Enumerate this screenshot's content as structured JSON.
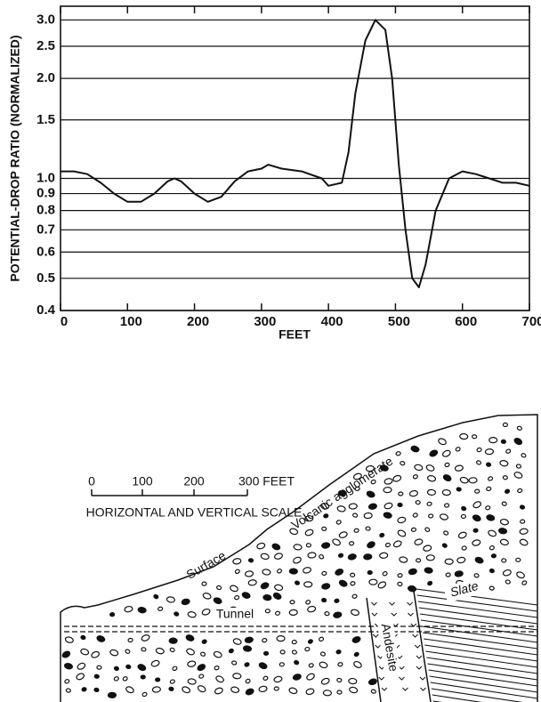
{
  "chart_data": {
    "type": "line",
    "x_label": "FEET",
    "y_label": "POTENTIAL-DROP RATIO (NORMALIZED)",
    "log_y": true,
    "grid": true,
    "xlim": [
      0,
      700
    ],
    "ylim": [
      0.4,
      3.3
    ],
    "xticks": [
      0,
      100,
      200,
      300,
      400,
      500,
      600,
      700
    ],
    "yticks": [
      0.4,
      0.5,
      0.6,
      0.7,
      0.8,
      0.9,
      {
        "value": 1,
        "label": "1.0"
      },
      1.5,
      {
        "value": 2,
        "label": "2.0"
      },
      2.5,
      {
        "value": 3,
        "label": "3.0"
      }
    ],
    "x": [
      0,
      20,
      40,
      60,
      80,
      100,
      120,
      140,
      160,
      170,
      180,
      200,
      220,
      240,
      260,
      280,
      300,
      310,
      330,
      360,
      390,
      400,
      420,
      430,
      440,
      455,
      470,
      485,
      495,
      505,
      515,
      525,
      535,
      545,
      560,
      580,
      600,
      620,
      640,
      660,
      680,
      700
    ],
    "series": [
      {
        "color": "#111111",
        "values": [
          1.05,
          1.05,
          1.03,
          0.97,
          0.9,
          0.85,
          0.85,
          0.9,
          0.98,
          1.0,
          0.98,
          0.9,
          0.85,
          0.88,
          0.98,
          1.05,
          1.07,
          1.1,
          1.07,
          1.05,
          1.0,
          0.95,
          0.97,
          1.2,
          1.8,
          2.6,
          3.0,
          2.8,
          2.0,
          1.1,
          0.7,
          0.5,
          0.47,
          0.55,
          0.8,
          1.0,
          1.05,
          1.03,
          1.0,
          0.97,
          0.97,
          0.95
        ]
      }
    ]
  },
  "diagram": {
    "scale_labels": [
      "0",
      "100",
      "200",
      "300 FEET"
    ],
    "scale_caption": "HORIZONTAL AND VERTICAL SCALE",
    "labels": {
      "surface": "Surface",
      "agglomerate": "Volcanic agglomerate",
      "tunnel": "Tunnel",
      "andesite": "Andesite",
      "slate": "Slate"
    }
  }
}
